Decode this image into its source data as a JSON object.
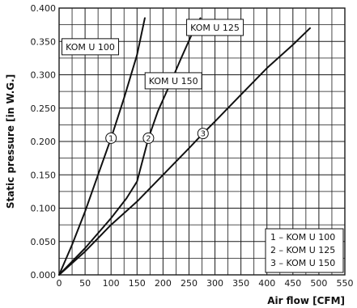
{
  "chart_data": {
    "type": "line",
    "xlabel": "Air flow [CFM]",
    "ylabel": "Static pressure [in W.G.]",
    "xlim": [
      0,
      550
    ],
    "ylim": [
      0,
      0.4
    ],
    "x_ticks": [
      "0",
      "50",
      "100",
      "150",
      "200",
      "250",
      "300",
      "350",
      "400",
      "450",
      "500",
      "550"
    ],
    "y_ticks": [
      "0.000",
      "0.050",
      "0.100",
      "0.150",
      "0.200",
      "0.250",
      "0.300",
      "0.350",
      "0.400"
    ],
    "grid": true,
    "colors": {
      "line": "#111111",
      "grid": "#1a1a1a",
      "background": "#ffffff"
    },
    "series": [
      {
        "name": "KOM U 100",
        "x": [
          0,
          25,
          50,
          75,
          100,
          125,
          150,
          165
        ],
        "y": [
          0,
          0.045,
          0.095,
          0.15,
          0.205,
          0.265,
          0.33,
          0.385
        ]
      },
      {
        "name": "KOM U 125",
        "x": [
          0,
          50,
          100,
          130,
          150,
          172,
          190,
          210,
          235,
          255,
          272
        ],
        "y": [
          0,
          0.04,
          0.085,
          0.115,
          0.14,
          0.205,
          0.245,
          0.28,
          0.325,
          0.36,
          0.385
        ]
      },
      {
        "name": "KOM U 150",
        "x": [
          0,
          50,
          100,
          150,
          200,
          250,
          277,
          300,
          350,
          400,
          450,
          483
        ],
        "y": [
          0,
          0.035,
          0.075,
          0.11,
          0.15,
          0.19,
          0.212,
          0.23,
          0.27,
          0.31,
          0.345,
          0.37
        ]
      }
    ],
    "curve_labels": [
      {
        "text": "KOM U 100",
        "x": 60,
        "y": 0.342
      },
      {
        "text": "KOM U 125",
        "x": 300,
        "y": 0.371
      },
      {
        "text": "KOM U 150",
        "x": 220,
        "y": 0.291
      }
    ],
    "markers": [
      {
        "label": "1",
        "x": 100,
        "y": 0.205
      },
      {
        "label": "2",
        "x": 172,
        "y": 0.205
      },
      {
        "label": "3",
        "x": 277,
        "y": 0.212
      }
    ],
    "legend": {
      "position": "bottom-right",
      "items": [
        "1 – KOM U 100",
        "2 – KOM U 125",
        "3 – KOM U 150"
      ]
    }
  }
}
